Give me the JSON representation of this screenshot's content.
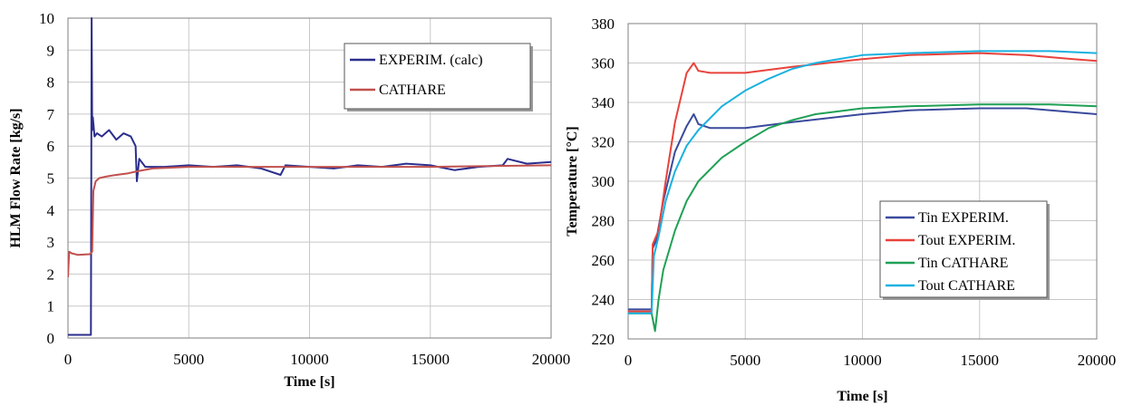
{
  "chart_data": [
    {
      "type": "line",
      "xlabel": "Time [s]",
      "ylabel": "HLM Flow Rate [kg/s]",
      "xlim": [
        0,
        20000
      ],
      "ylim": [
        0,
        10
      ],
      "xticks": [
        "0",
        "5000",
        "10000",
        "15000",
        "20000"
      ],
      "yticks": [
        "0",
        "1",
        "2",
        "3",
        "4",
        "5",
        "6",
        "7",
        "8",
        "9",
        "10"
      ],
      "grid": true,
      "legend_position": "top-right",
      "series": [
        {
          "name": "EXPERIM. (calc)",
          "color": "#2b2e8c",
          "x": [
            0,
            950,
            980,
            1000,
            1030,
            1100,
            1200,
            1400,
            1700,
            2000,
            2300,
            2600,
            2800,
            2850,
            2950,
            3200,
            4000,
            5000,
            6000,
            7000,
            8000,
            8800,
            9000,
            10000,
            11000,
            12000,
            13000,
            14000,
            15000,
            16000,
            17000,
            18000,
            18200,
            19000,
            20000
          ],
          "y": [
            0.1,
            0.1,
            10,
            6.5,
            6.9,
            6.3,
            6.4,
            6.3,
            6.5,
            6.2,
            6.4,
            6.3,
            6.0,
            4.9,
            5.6,
            5.35,
            5.35,
            5.4,
            5.35,
            5.4,
            5.3,
            5.1,
            5.4,
            5.35,
            5.3,
            5.4,
            5.35,
            5.45,
            5.4,
            5.25,
            5.35,
            5.4,
            5.6,
            5.45,
            5.5
          ]
        },
        {
          "name": "CATHARE",
          "color": "#c0504d",
          "x": [
            0,
            50,
            150,
            400,
            900,
            1000,
            1050,
            1150,
            1300,
            1600,
            2000,
            2500,
            2800,
            3500,
            5000,
            10000,
            15000,
            20000
          ],
          "y": [
            1.9,
            2.7,
            2.65,
            2.6,
            2.62,
            2.7,
            4.6,
            4.9,
            5.0,
            5.05,
            5.1,
            5.15,
            5.2,
            5.3,
            5.35,
            5.35,
            5.35,
            5.4
          ]
        }
      ]
    },
    {
      "type": "line",
      "xlabel": "Time [s]",
      "ylabel": "Temperature [°C]",
      "xlim": [
        0,
        20000
      ],
      "ylim": [
        220,
        380
      ],
      "xticks": [
        "0",
        "5000",
        "10000",
        "15000",
        "20000"
      ],
      "yticks": [
        "220",
        "240",
        "260",
        "280",
        "300",
        "320",
        "340",
        "360",
        "380"
      ],
      "grid": true,
      "legend_position": "bottom-right",
      "series": [
        {
          "name": "Tin EXPERIM.",
          "color": "#3a4a9c",
          "x": [
            0,
            1000,
            1050,
            1200,
            1500,
            2000,
            2500,
            2800,
            3000,
            3500,
            5000,
            7000,
            10000,
            12000,
            15000,
            17000,
            19000,
            20000
          ],
          "y": [
            235,
            235,
            266,
            270,
            290,
            315,
            328,
            334,
            329,
            327,
            327,
            330,
            334,
            336,
            337,
            337,
            335,
            334
          ]
        },
        {
          "name": "Tout EXPERIM.",
          "color": "#e8433c",
          "x": [
            0,
            1000,
            1050,
            1300,
            1600,
            2000,
            2500,
            2800,
            3000,
            3500,
            5000,
            7000,
            10000,
            12000,
            15000,
            17000,
            19000,
            20000
          ],
          "y": [
            234,
            234,
            268,
            275,
            300,
            330,
            355,
            360,
            356,
            355,
            355,
            358,
            362,
            364,
            365,
            364,
            362,
            361
          ]
        },
        {
          "name": "Tin CATHARE",
          "color": "#1fa055",
          "x": [
            0,
            1000,
            1150,
            1300,
            1500,
            2000,
            2500,
            3000,
            4000,
            5000,
            6000,
            7000,
            8000,
            10000,
            12000,
            15000,
            18000,
            20000
          ],
          "y": [
            233,
            233,
            224,
            240,
            255,
            275,
            290,
            300,
            312,
            320,
            327,
            331,
            334,
            337,
            338,
            339,
            339,
            338
          ]
        },
        {
          "name": "Tout CATHARE",
          "color": "#1ab1e0",
          "x": [
            0,
            1000,
            1100,
            1300,
            1600,
            2000,
            2500,
            3000,
            4000,
            5000,
            6000,
            7000,
            8000,
            10000,
            12000,
            15000,
            18000,
            20000
          ],
          "y": [
            233,
            233,
            262,
            272,
            290,
            305,
            318,
            326,
            338,
            346,
            352,
            357,
            360,
            364,
            365,
            366,
            366,
            365
          ]
        }
      ]
    }
  ]
}
